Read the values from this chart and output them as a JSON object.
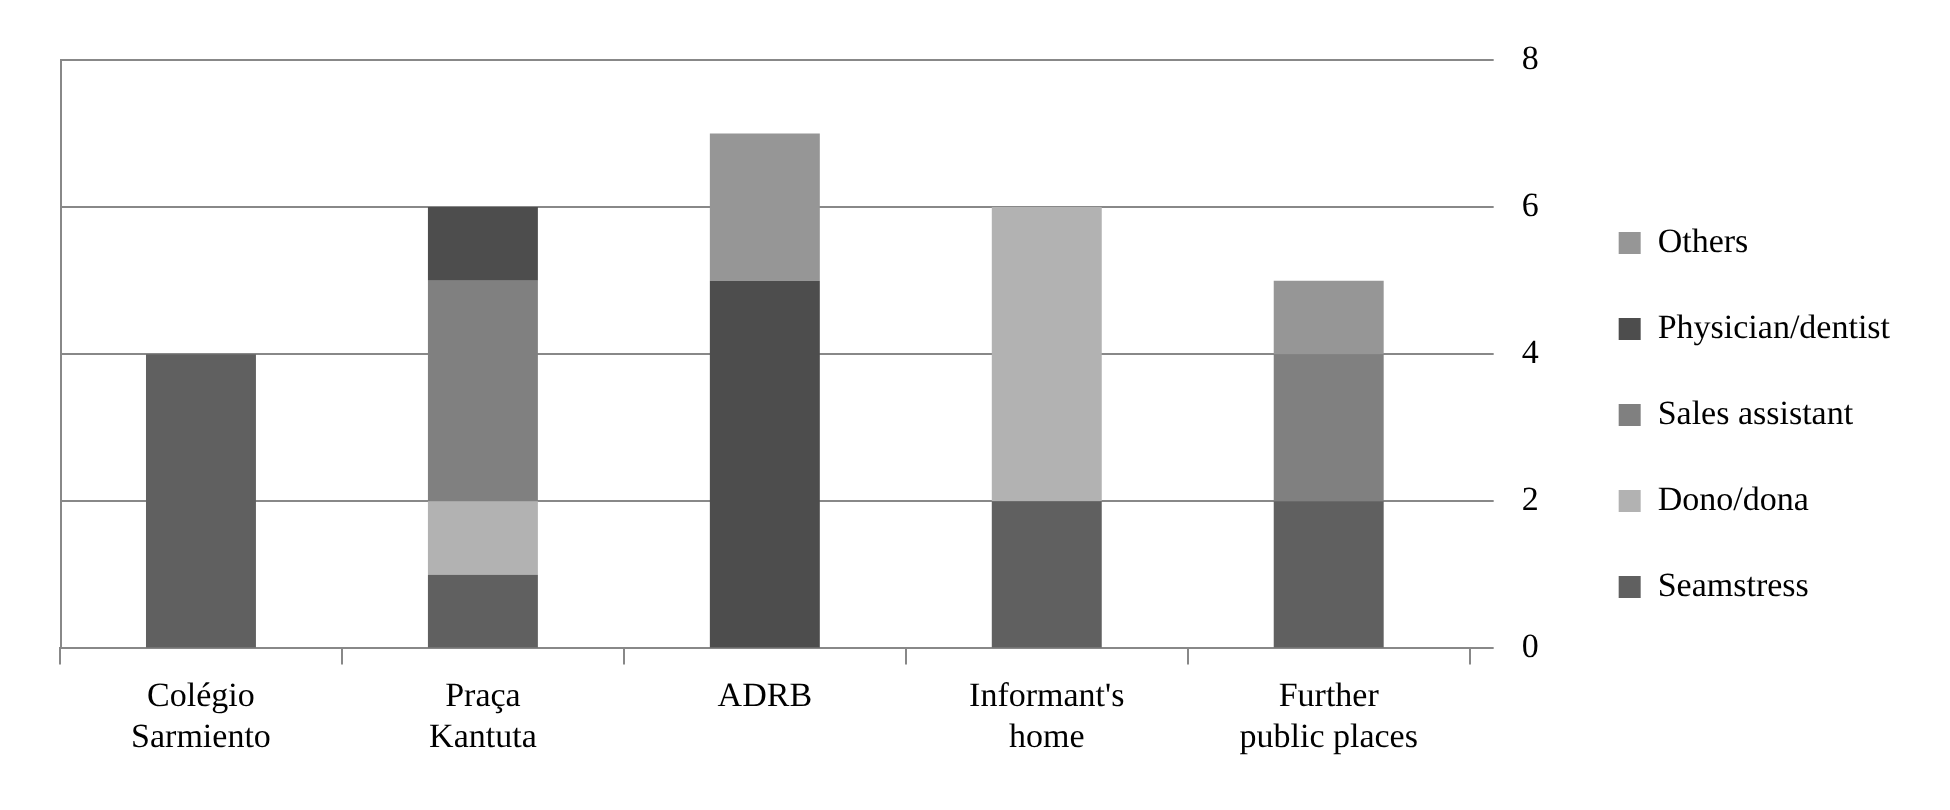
{
  "chart_data": {
    "type": "bar",
    "stacked": true,
    "categories": [
      "Colégio Sarmiento",
      "Praça Kantuta",
      "ADRB",
      "Informant's home",
      "Further public places"
    ],
    "series": [
      {
        "name": "Seamstress",
        "color": "#606060",
        "values": [
          4,
          1,
          0,
          2,
          2
        ]
      },
      {
        "name": "Dono/dona",
        "color": "#b2b2b2",
        "values": [
          0,
          1,
          0,
          4,
          0
        ]
      },
      {
        "name": "Sales assistant",
        "color": "#808080",
        "values": [
          0,
          3,
          0,
          0,
          2
        ]
      },
      {
        "name": "Physician/dentist",
        "color": "#4d4d4d",
        "values": [
          0,
          1,
          5,
          0,
          0
        ]
      },
      {
        "name": "Others",
        "color": "#969696",
        "values": [
          0,
          0,
          2,
          0,
          1
        ]
      }
    ],
    "ylim": [
      0,
      8
    ],
    "yticks": [
      0,
      2,
      4,
      6,
      8
    ],
    "grid": "y",
    "legend": "right"
  }
}
